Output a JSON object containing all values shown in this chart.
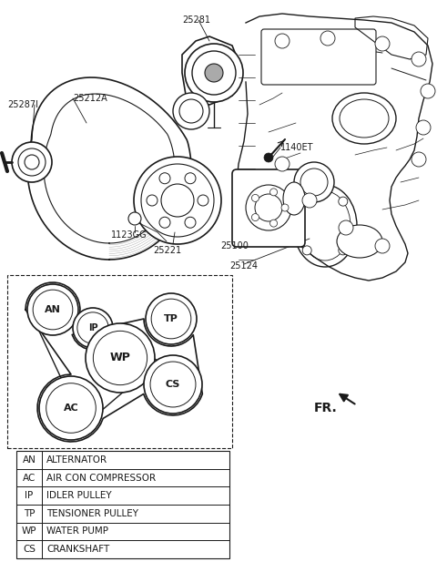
{
  "bg_color": "#ffffff",
  "line_color": "#1a1a1a",
  "fig_w": 4.8,
  "fig_h": 6.17,
  "legend_entries": [
    [
      "AN",
      "ALTERNATOR"
    ],
    [
      "AC",
      "AIR CON COMPRESSOR"
    ],
    [
      "IP",
      "IDLER PULLEY"
    ],
    [
      "TP",
      "TENSIONER PULLEY"
    ],
    [
      "WP",
      "WATER PUMP"
    ],
    [
      "CS",
      "CRANKSHAFT"
    ]
  ]
}
